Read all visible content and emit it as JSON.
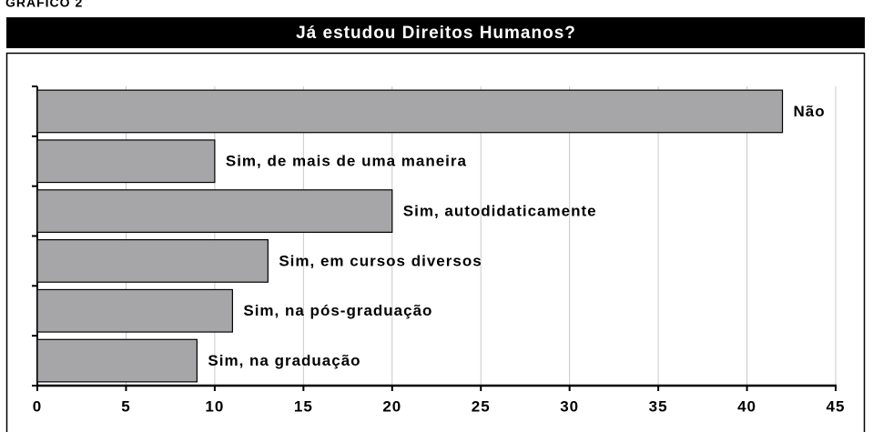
{
  "chart_data": {
    "type": "barh",
    "label": "GRÁFICO 2",
    "title": "Já estudou Direitos Humanos?",
    "categories": [
      "Não",
      "Sim, de mais de uma maneira",
      "Sim, autodidaticamente",
      "Sim, em cursos diversos",
      "Sim, na pós-graduação",
      "Sim, na graduação"
    ],
    "values": [
      42,
      10,
      20,
      13,
      11,
      9
    ],
    "color": "#a6a6a8",
    "xlim": [
      0,
      45
    ],
    "xticks": [
      0,
      5,
      10,
      15,
      20,
      25,
      30,
      35,
      40,
      45
    ],
    "grid": true
  }
}
